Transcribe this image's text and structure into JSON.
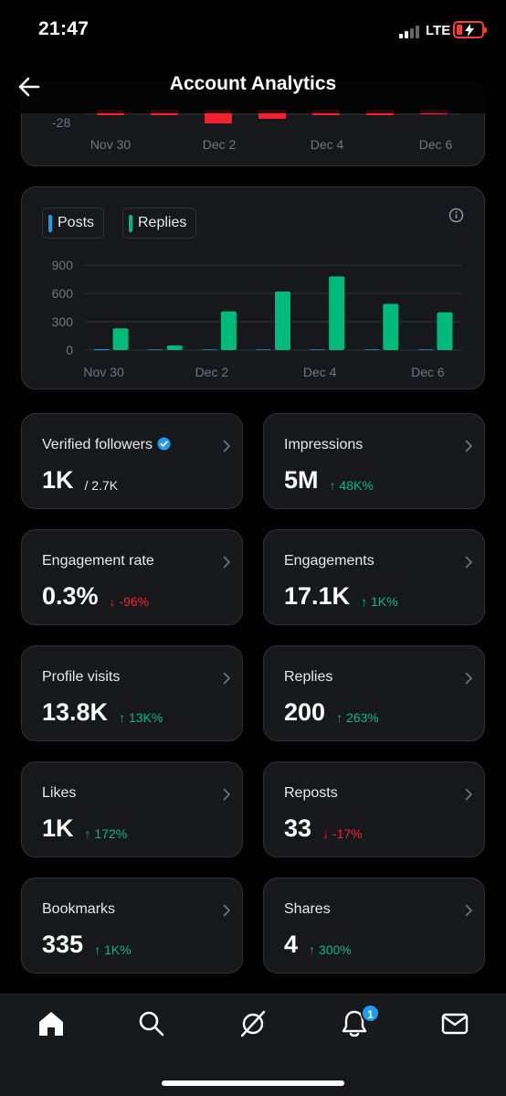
{
  "status_bar": {
    "time": "21:47",
    "network": "LTE"
  },
  "header": {
    "title": "Account Analytics"
  },
  "top_chart": {
    "y_tick": "-28",
    "x_ticks": [
      "Nov 30",
      "Dec 2",
      "Dec 4",
      "Dec 6"
    ]
  },
  "chart_data": {
    "type": "bar",
    "categories": [
      "Nov 30",
      "Dec 1",
      "Dec 2",
      "Dec 3",
      "Dec 4",
      "Dec 5",
      "Dec 6"
    ],
    "series": [
      {
        "name": "Posts",
        "values": [
          3,
          0,
          0,
          0,
          0,
          0,
          0
        ],
        "color": "#1d9bf0"
      },
      {
        "name": "Replies",
        "values": [
          230,
          50,
          410,
          620,
          780,
          490,
          400
        ],
        "color": "#00ba7c"
      }
    ],
    "y_ticks": [
      "900",
      "600",
      "300",
      "0"
    ],
    "x_tick_labels": [
      "Nov 30",
      "Dec 2",
      "Dec 4",
      "Dec 6"
    ],
    "ylim": [
      0,
      900
    ],
    "grid": true
  },
  "legend": {
    "posts": "Posts",
    "replies": "Replies"
  },
  "stats": [
    {
      "label": "Verified followers",
      "value": "1K",
      "total": "/ 2.7K",
      "verified": true
    },
    {
      "label": "Impressions",
      "value": "5M",
      "delta": "↑ 48K%",
      "trend": "up"
    },
    {
      "label": "Engagement rate",
      "value": "0.3%",
      "delta": "↓ -96%",
      "trend": "down"
    },
    {
      "label": "Engagements",
      "value": "17.1K",
      "delta": "↑ 1K%",
      "trend": "up"
    },
    {
      "label": "Profile visits",
      "value": "13.8K",
      "delta": "↑ 13K%",
      "trend": "up"
    },
    {
      "label": "Replies",
      "value": "200",
      "delta": "↑ 263%",
      "trend": "up"
    },
    {
      "label": "Likes",
      "value": "1K",
      "delta": "↑ 172%",
      "trend": "up"
    },
    {
      "label": "Reposts",
      "value": "33",
      "delta": "↓ -17%",
      "trend": "down"
    },
    {
      "label": "Bookmarks",
      "value": "335",
      "delta": "↑ 1K%",
      "trend": "up"
    },
    {
      "label": "Shares",
      "value": "4",
      "delta": "↑ 300%",
      "trend": "up"
    }
  ],
  "tabbar": {
    "icons": [
      "home-icon",
      "search-icon",
      "grok-icon",
      "notifications-icon",
      "messages-icon"
    ],
    "notification_count": "1"
  },
  "colors": {
    "up": "#00ba7c",
    "down": "#f4212e",
    "accent": "#1d9bf0"
  }
}
